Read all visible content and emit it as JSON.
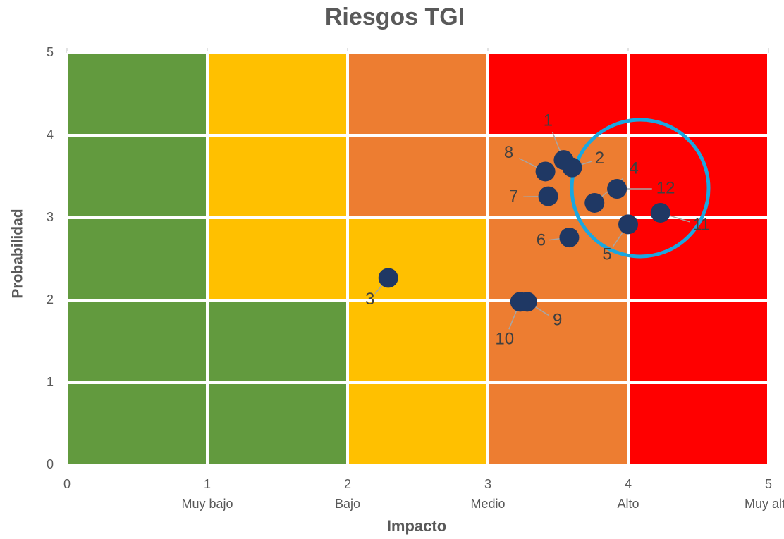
{
  "chart_data": {
    "type": "scatter",
    "title": "Riesgos TGI",
    "x_label": "Impacto",
    "y_label": "Probabilidad",
    "xlim": [
      0,
      5
    ],
    "ylim": [
      0,
      5
    ],
    "xticks": [
      0,
      1,
      2,
      3,
      4,
      5
    ],
    "yticks": [
      0,
      1,
      2,
      3,
      4,
      5
    ],
    "x_level_labels": [
      "Muy bajo",
      "Bajo",
      "Medio",
      "Alto",
      "Muy alto"
    ],
    "cell_colors": [
      [
        "#629a3e",
        "#629a3e",
        "#ffc000",
        "#ed7d31",
        "#ff0000"
      ],
      [
        "#629a3e",
        "#629a3e",
        "#ffc000",
        "#ed7d31",
        "#ff0000"
      ],
      [
        "#629a3e",
        "#ffc000",
        "#ffc000",
        "#ed7d31",
        "#ff0000"
      ],
      [
        "#629a3e",
        "#ffc000",
        "#ed7d31",
        "#ed7d31",
        "#ff0000"
      ],
      [
        "#629a3e",
        "#ffc000",
        "#ed7d31",
        "#ff0000",
        "#ff0000"
      ]
    ],
    "series": [
      {
        "color": "#1f3864",
        "labels": [
          "1",
          "2",
          "3",
          "4",
          "5",
          "6",
          "7",
          "8",
          "9",
          "10",
          "11",
          "12"
        ],
        "x": [
          3.54,
          3.6,
          2.29,
          3.76,
          4.0,
          3.58,
          3.43,
          3.41,
          3.28,
          3.23,
          4.23,
          3.92
        ],
        "values": [
          3.7,
          3.61,
          2.27,
          3.18,
          2.92,
          2.76,
          3.26,
          3.56,
          1.98,
          1.98,
          3.06,
          3.35
        ]
      }
    ]
  }
}
